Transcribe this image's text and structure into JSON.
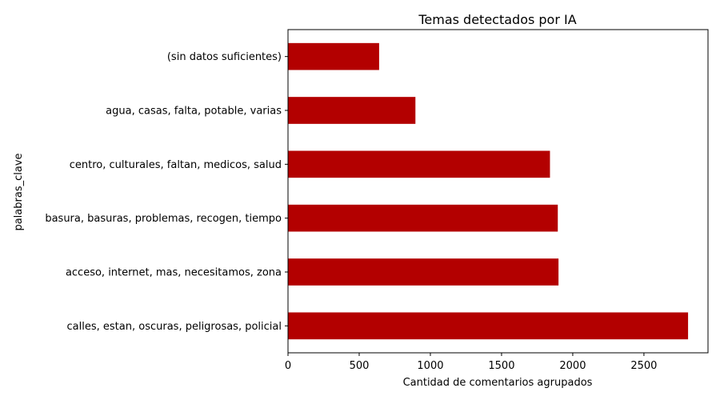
{
  "chart_data": {
    "type": "bar",
    "orientation": "horizontal",
    "title": "Temas detectados por IA",
    "xlabel": "Cantidad de comentarios agrupados",
    "ylabel": "palabras_clave",
    "categories": [
      "calles, estan, oscuras, peligrosas, policial",
      "acceso, internet, mas, necesitamos, zona",
      "basura, basuras, problemas, recogen, tiempo",
      "centro, culturales, faltan, medicos, salud",
      "agua, casas, falta, potable, varias",
      "(sin datos suficientes)"
    ],
    "values": [
      2810,
      1900,
      1895,
      1840,
      895,
      640
    ],
    "xlim": [
      0,
      2950
    ],
    "xticks": [
      0,
      500,
      1000,
      1500,
      2000,
      2500
    ],
    "bar_color": "#b30000",
    "grid": false,
    "legend": "none"
  }
}
